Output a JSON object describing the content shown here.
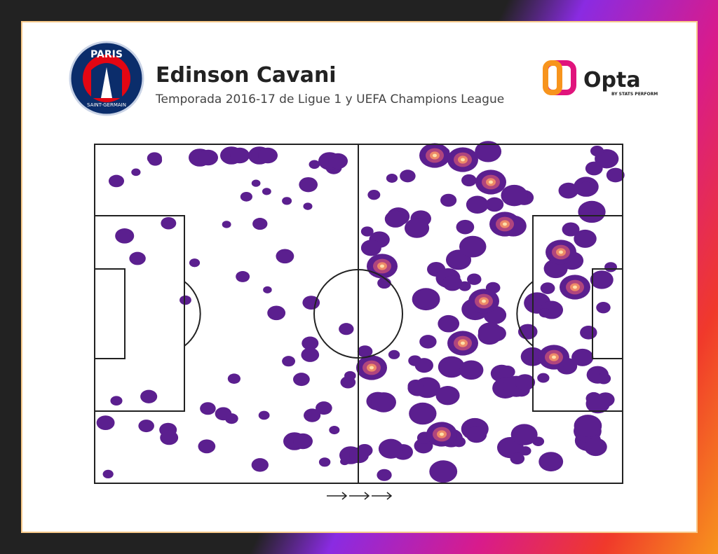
{
  "header": {
    "title": "Edinson Cavani",
    "subtitle": "Temporada 2016-17 de Ligue 1 y UEFA Champions League"
  },
  "club_logo": {
    "top": "PARIS",
    "bottom": "SAINT-GERMAIN"
  },
  "brand": {
    "name": "Opta",
    "tagline": "BY STATS PERFORM"
  }
}
